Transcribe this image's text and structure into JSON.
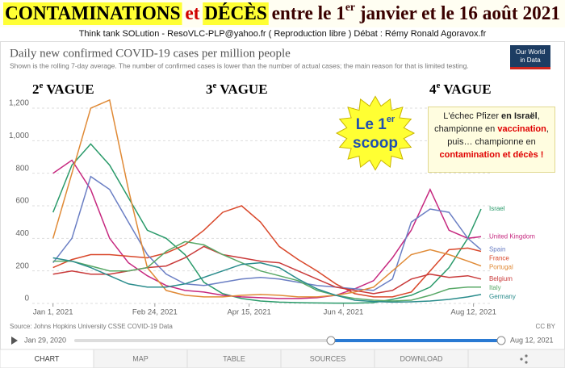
{
  "header": {
    "title": [
      {
        "text": "CONTAMINATIONS",
        "style": "highlight"
      },
      {
        "text": " et ",
        "style": "red"
      },
      {
        "text": "DÉCÈS",
        "style": "highlight"
      },
      {
        "text": " entre le 1",
        "style": "plain"
      },
      {
        "text": "er",
        "style": "sup"
      },
      {
        "text": " janvier et le 16 août 2021",
        "style": "plain"
      }
    ],
    "credits": "Think tank SOLution  -   ResoVLC-PLP@yahoo.fr   ( Reproduction libre )   Débat : Rémy Ronald Agoravox.fr",
    "logo": [
      "Our World",
      "in Data"
    ]
  },
  "annotations": {
    "waves": [
      {
        "number": "2",
        "sup": "e",
        "text": " VAGUE"
      },
      {
        "number": "3",
        "sup": "e",
        "text": " VAGUE"
      },
      {
        "number": "4",
        "sup": "e",
        "text": " VAGUE"
      }
    ],
    "scoop": {
      "line1": "Le 1",
      "sup": "er",
      "line2": "scoop"
    },
    "pfizer": [
      {
        "text": "L'échec Pfizer ",
        "style": "plain"
      },
      {
        "text": "en Israël",
        "style": "bold"
      },
      {
        "text": ",",
        "style": "plain"
      },
      {
        "text": "championne en ",
        "style": "plain"
      },
      {
        "text": "vaccination",
        "style": "red"
      },
      {
        "text": ",",
        "style": "plain"
      },
      {
        "text": "puis… championne en",
        "style": "plain"
      },
      {
        "text": "contamination et décès !",
        "style": "red"
      }
    ]
  },
  "chart_data": {
    "type": "line",
    "title": "Daily new confirmed COVID-19 cases per million people",
    "subtitle": "Shown is the rolling 7-day average. The number of confirmed cases is lower than the number of actual cases; the main reason for that is limited testing.",
    "x": [
      "2021-01-01",
      "2021-01-11",
      "2021-01-21",
      "2021-01-31",
      "2021-02-10",
      "2021-02-20",
      "2021-03-02",
      "2021-03-12",
      "2021-03-22",
      "2021-04-01",
      "2021-04-11",
      "2021-04-21",
      "2021-05-01",
      "2021-05-11",
      "2021-05-21",
      "2021-05-31",
      "2021-06-10",
      "2021-06-20",
      "2021-06-30",
      "2021-07-10",
      "2021-07-20",
      "2021-07-30",
      "2021-08-09",
      "2021-08-16"
    ],
    "xlim": [
      "2020-12-21",
      "2021-08-22"
    ],
    "xticks": [
      {
        "value": "2021-01-01",
        "label": "Jan 1, 2021"
      },
      {
        "value": "2021-02-24",
        "label": "Feb 24, 2021"
      },
      {
        "value": "2021-04-15",
        "label": "Apr 15, 2021"
      },
      {
        "value": "2021-06-04",
        "label": "Jun 4, 2021"
      },
      {
        "value": "2021-08-12",
        "label": "Aug 12, 2021"
      }
    ],
    "ylim": [
      0,
      1200
    ],
    "yticks": [
      0,
      200,
      400,
      600,
      800,
      {
        "value": 1000,
        "label": "1,000"
      },
      {
        "value": 1200,
        "label": "1,200"
      }
    ],
    "grid": true,
    "series": [
      {
        "name": "Israel",
        "color": "#2a9a6a",
        "values": [
          560,
          850,
          980,
          850,
          650,
          450,
          400,
          300,
          130,
          60,
          30,
          15,
          8,
          5,
          3,
          2,
          2,
          5,
          25,
          50,
          100,
          220,
          400,
          580
        ]
      },
      {
        "name": "United Kingdom",
        "color": "#c6287f",
        "values": [
          800,
          880,
          700,
          400,
          250,
          170,
          110,
          80,
          70,
          50,
          40,
          35,
          30,
          30,
          35,
          50,
          90,
          140,
          280,
          450,
          700,
          450,
          400,
          410
        ]
      },
      {
        "name": "France",
        "color": "#d9482b",
        "values": [
          220,
          270,
          300,
          300,
          290,
          280,
          310,
          360,
          450,
          560,
          600,
          500,
          350,
          270,
          200,
          120,
          60,
          40,
          40,
          70,
          200,
          330,
          340,
          320
        ]
      },
      {
        "name": "Spain",
        "color": "#6b7fc4",
        "values": [
          250,
          400,
          780,
          700,
          500,
          300,
          180,
          120,
          110,
          130,
          150,
          160,
          150,
          130,
          110,
          100,
          90,
          80,
          150,
          500,
          580,
          560,
          400,
          330
        ]
      },
      {
        "name": "Portugal",
        "color": "#e08a36",
        "values": [
          400,
          800,
          1200,
          1250,
          700,
          220,
          80,
          50,
          40,
          40,
          50,
          55,
          50,
          40,
          40,
          50,
          70,
          100,
          200,
          300,
          330,
          300,
          260,
          230
        ]
      },
      {
        "name": "Belgium",
        "color": "#c93a3a",
        "values": [
          180,
          200,
          180,
          180,
          200,
          220,
          230,
          280,
          350,
          300,
          280,
          260,
          250,
          200,
          150,
          100,
          80,
          60,
          80,
          150,
          180,
          160,
          170,
          150
        ]
      },
      {
        "name": "Italy",
        "color": "#58a866",
        "values": [
          260,
          260,
          230,
          200,
          200,
          220,
          320,
          380,
          360,
          300,
          250,
          200,
          170,
          140,
          80,
          50,
          30,
          20,
          15,
          20,
          50,
          90,
          100,
          100
        ]
      },
      {
        "name": "Germany",
        "color": "#2a8c8c",
        "values": [
          280,
          260,
          220,
          170,
          120,
          100,
          100,
          120,
          160,
          200,
          240,
          250,
          220,
          150,
          90,
          50,
          20,
          12,
          8,
          10,
          15,
          25,
          40,
          55
        ]
      }
    ],
    "source": "Source: Johns Hopkins University CSSE COVID-19 Data",
    "license": "CC BY"
  },
  "footer": {
    "timeline_start": "Jan 29, 2020",
    "timeline_end": "Aug 12, 2021",
    "tabs": [
      "CHART",
      "MAP",
      "TABLE",
      "SOURCES",
      "DOWNLOAD"
    ]
  }
}
